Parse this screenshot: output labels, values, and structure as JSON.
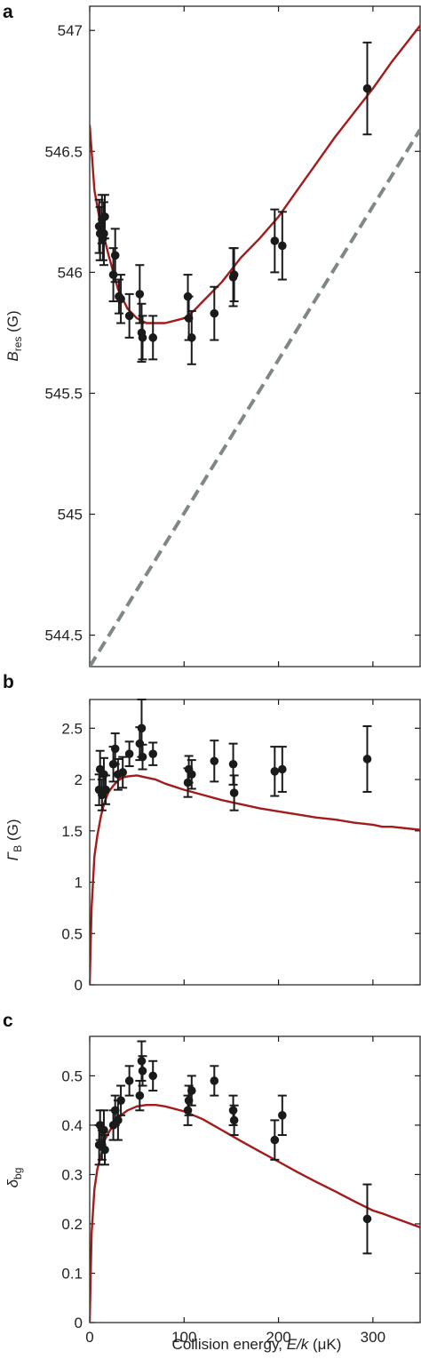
{
  "colors": {
    "fit": "#a21c1c",
    "dashed": "#7f8886",
    "points": "#1a1a1a",
    "axis": "#1a1a1a"
  },
  "chart_data": [
    {
      "panel": "a",
      "type": "scatter",
      "ylim": [
        544.37,
        547.1
      ],
      "xlim": [
        0,
        350
      ],
      "yticks": [
        544.5,
        545,
        545.5,
        546,
        546.5,
        547
      ],
      "ytick_labels": [
        "544.5",
        "545",
        "545.5",
        "546",
        "546.5",
        "547"
      ],
      "xticks": [
        0,
        100,
        200,
        300
      ],
      "ylabel": {
        "main": "B",
        "sub": "res",
        "unit": " (G)"
      },
      "points": [
        {
          "x": 10,
          "y": 546.19,
          "err": 0.11
        },
        {
          "x": 11,
          "y": 546.16,
          "err": 0.11
        },
        {
          "x": 13,
          "y": 546.22,
          "err": 0.1
        },
        {
          "x": 14,
          "y": 546.14,
          "err": 0.09
        },
        {
          "x": 15,
          "y": 546.16,
          "err": 0.13
        },
        {
          "x": 16,
          "y": 546.23,
          "err": 0.09
        },
        {
          "x": 25,
          "y": 545.99,
          "err": 0.11
        },
        {
          "x": 27,
          "y": 546.07,
          "err": 0.11
        },
        {
          "x": 31,
          "y": 545.9,
          "err": 0.07
        },
        {
          "x": 33,
          "y": 545.89,
          "err": 0.1
        },
        {
          "x": 42,
          "y": 545.82,
          "err": 0.09
        },
        {
          "x": 53,
          "y": 545.91,
          "err": 0.12
        },
        {
          "x": 55,
          "y": 545.75,
          "err": 0.12
        },
        {
          "x": 56,
          "y": 545.73,
          "err": 0.09
        },
        {
          "x": 67,
          "y": 545.73,
          "err": 0.09
        },
        {
          "x": 104,
          "y": 545.9,
          "err": 0.09
        },
        {
          "x": 105,
          "y": 545.81,
          "err": 0.09
        },
        {
          "x": 108,
          "y": 545.73,
          "err": 0.11
        },
        {
          "x": 132,
          "y": 545.83,
          "err": 0.11
        },
        {
          "x": 152,
          "y": 545.98,
          "err": 0.12
        },
        {
          "x": 153,
          "y": 545.99,
          "err": 0.11
        },
        {
          "x": 196,
          "y": 546.13,
          "err": 0.13
        },
        {
          "x": 204,
          "y": 546.11,
          "err": 0.14
        },
        {
          "x": 294,
          "y": 546.76,
          "err": 0.19
        }
      ],
      "fit_curve": {
        "x": [
          0,
          5,
          10,
          15,
          20,
          25,
          30,
          35,
          40,
          45,
          50,
          55,
          60,
          65,
          70,
          80,
          90,
          100,
          110,
          120,
          140,
          160,
          180,
          200,
          220,
          240,
          260,
          280,
          300,
          320,
          340,
          350
        ],
        "y": [
          546.61,
          546.34,
          546.23,
          546.15,
          546.07,
          546.0,
          545.93,
          545.89,
          545.85,
          545.83,
          545.81,
          545.8,
          545.79,
          545.79,
          545.79,
          545.79,
          545.8,
          545.81,
          545.84,
          545.88,
          545.96,
          546.06,
          546.14,
          546.23,
          546.34,
          546.45,
          546.56,
          546.66,
          546.76,
          546.87,
          546.97,
          547.02
        ]
      },
      "dashed_line": {
        "x": [
          0,
          350
        ],
        "y": [
          544.37,
          546.59
        ]
      }
    },
    {
      "panel": "b",
      "type": "scatter",
      "ylim": [
        0,
        2.78
      ],
      "xlim": [
        0,
        350
      ],
      "yticks": [
        0,
        0.5,
        1,
        1.5,
        2,
        2.5
      ],
      "ytick_labels": [
        "0",
        "0.5",
        "1",
        "1.5",
        "2",
        "2.5"
      ],
      "xticks": [
        0,
        100,
        200,
        300
      ],
      "ylabel": {
        "main": "Γ",
        "sub": "B",
        "unit": " (G)"
      },
      "points": [
        {
          "x": 10,
          "y": 1.9,
          "err": 0.15
        },
        {
          "x": 11,
          "y": 2.1,
          "err": 0.18
        },
        {
          "x": 13,
          "y": 1.85,
          "err": 0.15
        },
        {
          "x": 15,
          "y": 2.05,
          "err": 0.16
        },
        {
          "x": 17,
          "y": 1.9,
          "err": 0.14
        },
        {
          "x": 25,
          "y": 2.15,
          "err": 0.17
        },
        {
          "x": 27,
          "y": 2.3,
          "err": 0.15
        },
        {
          "x": 30,
          "y": 2.05,
          "err": 0.15
        },
        {
          "x": 35,
          "y": 2.07,
          "err": 0.15
        },
        {
          "x": 42,
          "y": 2.25,
          "err": 0.12
        },
        {
          "x": 53,
          "y": 2.35,
          "err": 0.16
        },
        {
          "x": 55,
          "y": 2.5,
          "err": 0.28
        },
        {
          "x": 56,
          "y": 2.22,
          "err": 0.12
        },
        {
          "x": 67,
          "y": 2.25,
          "err": 0.11
        },
        {
          "x": 104,
          "y": 1.97,
          "err": 0.14
        },
        {
          "x": 105,
          "y": 2.1,
          "err": 0.13
        },
        {
          "x": 108,
          "y": 2.05,
          "err": 0.14
        },
        {
          "x": 132,
          "y": 2.18,
          "err": 0.2
        },
        {
          "x": 152,
          "y": 2.15,
          "err": 0.2
        },
        {
          "x": 153,
          "y": 1.87,
          "err": 0.17
        },
        {
          "x": 196,
          "y": 2.08,
          "err": 0.24
        },
        {
          "x": 204,
          "y": 2.1,
          "err": 0.22
        },
        {
          "x": 294,
          "y": 2.2,
          "err": 0.32
        }
      ],
      "fit_curve": {
        "x": [
          0,
          2,
          5,
          8,
          12,
          16,
          20,
          25,
          30,
          35,
          40,
          50,
          60,
          70,
          80,
          100,
          120,
          140,
          160,
          180,
          200,
          220,
          240,
          260,
          280,
          300,
          310,
          320,
          340,
          350
        ],
        "y": [
          0,
          0.75,
          1.25,
          1.45,
          1.65,
          1.79,
          1.88,
          1.94,
          1.99,
          2.02,
          2.03,
          2.04,
          2.02,
          2.0,
          1.96,
          1.9,
          1.85,
          1.8,
          1.76,
          1.72,
          1.69,
          1.66,
          1.63,
          1.61,
          1.58,
          1.56,
          1.54,
          1.54,
          1.52,
          1.51
        ]
      }
    },
    {
      "panel": "c",
      "type": "scatter",
      "ylim": [
        0,
        0.58
      ],
      "xlim": [
        0,
        350
      ],
      "yticks": [
        0,
        0.1,
        0.2,
        0.3,
        0.4,
        0.5
      ],
      "ytick_labels": [
        "0",
        "0.1",
        "0.2",
        "0.3",
        "0.4",
        "0.5"
      ],
      "xticks": [
        0,
        100,
        200,
        300
      ],
      "xtick_labels": [
        "0",
        "100",
        "200",
        "300"
      ],
      "ylabel": {
        "main": "δ",
        "sub": "bg",
        "unit": ""
      },
      "xlabel": {
        "pre": "Collision energy, ",
        "italic": "E/k",
        "post": " (μK)"
      },
      "points": [
        {
          "x": 10,
          "y": 0.36,
          "err": 0.04
        },
        {
          "x": 11,
          "y": 0.4,
          "err": 0.03
        },
        {
          "x": 13,
          "y": 0.36,
          "err": 0.03
        },
        {
          "x": 15,
          "y": 0.39,
          "err": 0.04
        },
        {
          "x": 16,
          "y": 0.35,
          "err": 0.03
        },
        {
          "x": 25,
          "y": 0.4,
          "err": 0.03
        },
        {
          "x": 27,
          "y": 0.43,
          "err": 0.03
        },
        {
          "x": 30,
          "y": 0.41,
          "err": 0.04
        },
        {
          "x": 33,
          "y": 0.45,
          "err": 0.03
        },
        {
          "x": 42,
          "y": 0.49,
          "err": 0.03
        },
        {
          "x": 53,
          "y": 0.46,
          "err": 0.03
        },
        {
          "x": 55,
          "y": 0.53,
          "err": 0.04
        },
        {
          "x": 56,
          "y": 0.51,
          "err": 0.03
        },
        {
          "x": 67,
          "y": 0.5,
          "err": 0.03
        },
        {
          "x": 104,
          "y": 0.43,
          "err": 0.03
        },
        {
          "x": 105,
          "y": 0.45,
          "err": 0.03
        },
        {
          "x": 108,
          "y": 0.47,
          "err": 0.03
        },
        {
          "x": 132,
          "y": 0.49,
          "err": 0.03
        },
        {
          "x": 152,
          "y": 0.43,
          "err": 0.03
        },
        {
          "x": 153,
          "y": 0.41,
          "err": 0.03
        },
        {
          "x": 196,
          "y": 0.37,
          "err": 0.04
        },
        {
          "x": 204,
          "y": 0.42,
          "err": 0.04
        },
        {
          "x": 294,
          "y": 0.21,
          "err": 0.07
        }
      ],
      "fit_curve": {
        "x": [
          0,
          2,
          5,
          8,
          12,
          16,
          20,
          25,
          30,
          35,
          40,
          50,
          60,
          70,
          80,
          100,
          120,
          140,
          160,
          180,
          200,
          220,
          240,
          260,
          280,
          300,
          310,
          320,
          340,
          350
        ],
        "y": [
          0,
          0.18,
          0.27,
          0.31,
          0.34,
          0.37,
          0.385,
          0.4,
          0.413,
          0.423,
          0.43,
          0.438,
          0.441,
          0.441,
          0.438,
          0.428,
          0.412,
          0.39,
          0.368,
          0.347,
          0.326,
          0.305,
          0.285,
          0.266,
          0.246,
          0.227,
          0.221,
          0.214,
          0.2,
          0.193
        ]
      }
    }
  ],
  "panel_letters": [
    "a",
    "b",
    "c"
  ]
}
